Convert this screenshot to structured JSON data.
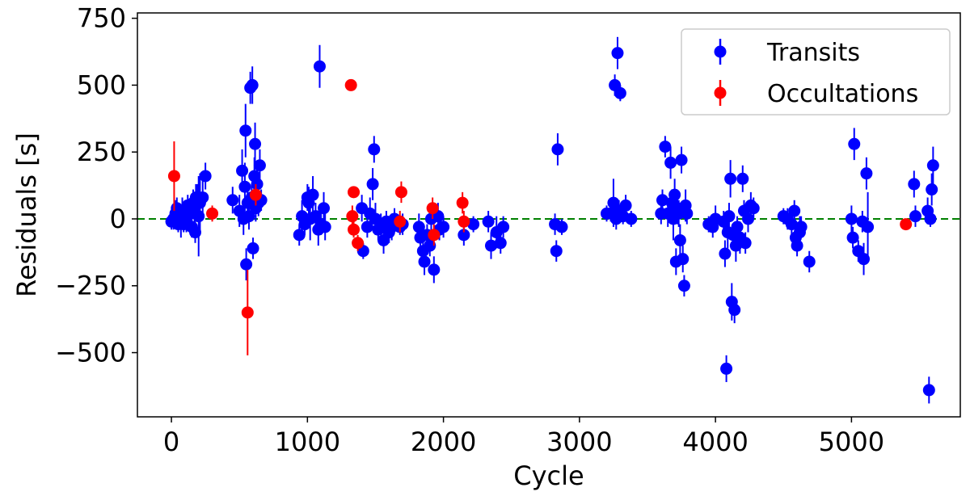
{
  "chart_data": {
    "type": "scatter",
    "xlabel": "Cycle",
    "ylabel": "Residuals [s]",
    "xlim": [
      -250,
      5800
    ],
    "ylim": [
      -740,
      770
    ],
    "xticks": [
      0,
      1000,
      2000,
      3000,
      4000,
      5000
    ],
    "yticks": [
      -500,
      -250,
      0,
      250,
      500,
      750
    ],
    "xtick_labels": [
      "0",
      "1000",
      "2000",
      "3000",
      "4000",
      "5000"
    ],
    "ytick_labels": [
      "−500",
      "−250",
      "0",
      "250",
      "500",
      "750"
    ],
    "reference_line": {
      "y": 0,
      "style": "dashed",
      "color": "#008000"
    },
    "legend": {
      "position": "top-right"
    },
    "series": [
      {
        "name": "Transits",
        "color": "#0000ff",
        "points": [
          {
            "x": 0,
            "y": -10,
            "err": 30
          },
          {
            "x": 15,
            "y": 0,
            "err": 40
          },
          {
            "x": 30,
            "y": 20,
            "err": 50
          },
          {
            "x": 40,
            "y": 40,
            "err": 40
          },
          {
            "x": 50,
            "y": -20,
            "err": 30
          },
          {
            "x": 60,
            "y": 10,
            "err": 40
          },
          {
            "x": 70,
            "y": -10,
            "err": 60
          },
          {
            "x": 80,
            "y": 30,
            "err": 50
          },
          {
            "x": 90,
            "y": -20,
            "err": 30
          },
          {
            "x": 100,
            "y": 30,
            "err": 40
          },
          {
            "x": 110,
            "y": 0,
            "err": 50
          },
          {
            "x": 120,
            "y": 50,
            "err": 40
          },
          {
            "x": 140,
            "y": 20,
            "err": 30
          },
          {
            "x": 150,
            "y": -30,
            "err": 40
          },
          {
            "x": 160,
            "y": 60,
            "err": 50
          },
          {
            "x": 170,
            "y": 40,
            "err": 60
          },
          {
            "x": 175,
            "y": -50,
            "err": 40
          },
          {
            "x": 180,
            "y": 80,
            "err": 50
          },
          {
            "x": 190,
            "y": 70,
            "err": 60
          },
          {
            "x": 200,
            "y": 10,
            "err": 150
          },
          {
            "x": 210,
            "y": 60,
            "err": 110
          },
          {
            "x": 230,
            "y": 80,
            "err": 80
          },
          {
            "x": 250,
            "y": 160,
            "err": 50
          },
          {
            "x": 450,
            "y": 70,
            "err": 50
          },
          {
            "x": 500,
            "y": 30,
            "err": 60
          },
          {
            "x": 520,
            "y": 180,
            "err": 80
          },
          {
            "x": 530,
            "y": 0,
            "err": 60
          },
          {
            "x": 540,
            "y": 120,
            "err": 90
          },
          {
            "x": 545,
            "y": 330,
            "err": 100
          },
          {
            "x": 550,
            "y": -170,
            "err": 60
          },
          {
            "x": 560,
            "y": 60,
            "err": 70
          },
          {
            "x": 570,
            "y": 10,
            "err": 50
          },
          {
            "x": 580,
            "y": 490,
            "err": 60
          },
          {
            "x": 590,
            "y": 80,
            "err": 50
          },
          {
            "x": 595,
            "y": 500,
            "err": 70
          },
          {
            "x": 600,
            "y": -110,
            "err": 40
          },
          {
            "x": 610,
            "y": 160,
            "err": 70
          },
          {
            "x": 615,
            "y": 280,
            "err": 80
          },
          {
            "x": 620,
            "y": 40,
            "err": 50
          },
          {
            "x": 630,
            "y": 130,
            "err": 60
          },
          {
            "x": 640,
            "y": 60,
            "err": 50
          },
          {
            "x": 650,
            "y": 200,
            "err": 60
          },
          {
            "x": 660,
            "y": 70,
            "err": 40
          },
          {
            "x": 940,
            "y": -60,
            "err": 40
          },
          {
            "x": 960,
            "y": 10,
            "err": 60
          },
          {
            "x": 980,
            "y": -20,
            "err": 40
          },
          {
            "x": 1000,
            "y": 80,
            "err": 50
          },
          {
            "x": 1010,
            "y": 60,
            "err": 60
          },
          {
            "x": 1020,
            "y": 0,
            "err": 80
          },
          {
            "x": 1040,
            "y": 90,
            "err": 70
          },
          {
            "x": 1060,
            "y": 10,
            "err": 50
          },
          {
            "x": 1080,
            "y": -40,
            "err": 60
          },
          {
            "x": 1090,
            "y": 570,
            "err": 80
          },
          {
            "x": 1100,
            "y": -20,
            "err": 40
          },
          {
            "x": 1120,
            "y": 40,
            "err": 60
          },
          {
            "x": 1130,
            "y": -30,
            "err": 50
          },
          {
            "x": 1400,
            "y": 40,
            "err": 50
          },
          {
            "x": 1410,
            "y": -120,
            "err": 30
          },
          {
            "x": 1440,
            "y": -30,
            "err": 40
          },
          {
            "x": 1460,
            "y": 20,
            "err": 60
          },
          {
            "x": 1480,
            "y": 130,
            "err": 60
          },
          {
            "x": 1490,
            "y": 260,
            "err": 50
          },
          {
            "x": 1500,
            "y": 0,
            "err": 60
          },
          {
            "x": 1520,
            "y": -40,
            "err": 40
          },
          {
            "x": 1540,
            "y": -20,
            "err": 40
          },
          {
            "x": 1560,
            "y": -80,
            "err": 50
          },
          {
            "x": 1580,
            "y": -10,
            "err": 40
          },
          {
            "x": 1600,
            "y": -50,
            "err": 40
          },
          {
            "x": 1620,
            "y": -30,
            "err": 50
          },
          {
            "x": 1640,
            "y": 0,
            "err": 40
          },
          {
            "x": 1680,
            "y": -30,
            "err": 30
          },
          {
            "x": 1700,
            "y": -20,
            "err": 40
          },
          {
            "x": 1820,
            "y": -30,
            "err": 50
          },
          {
            "x": 1830,
            "y": -70,
            "err": 40
          },
          {
            "x": 1850,
            "y": -120,
            "err": 50
          },
          {
            "x": 1860,
            "y": -160,
            "err": 50
          },
          {
            "x": 1880,
            "y": -60,
            "err": 40
          },
          {
            "x": 1900,
            "y": -100,
            "err": 40
          },
          {
            "x": 1910,
            "y": 0,
            "err": 50
          },
          {
            "x": 1930,
            "y": -190,
            "err": 50
          },
          {
            "x": 1960,
            "y": 10,
            "err": 50
          },
          {
            "x": 1970,
            "y": -40,
            "err": 40
          },
          {
            "x": 2000,
            "y": -30,
            "err": 40
          },
          {
            "x": 2150,
            "y": -60,
            "err": 40
          },
          {
            "x": 2220,
            "y": -20,
            "err": 30
          },
          {
            "x": 2330,
            "y": -10,
            "err": 40
          },
          {
            "x": 2350,
            "y": -100,
            "err": 50
          },
          {
            "x": 2390,
            "y": -50,
            "err": 60
          },
          {
            "x": 2420,
            "y": -90,
            "err": 40
          },
          {
            "x": 2440,
            "y": -30,
            "err": 40
          },
          {
            "x": 2820,
            "y": -20,
            "err": 40
          },
          {
            "x": 2830,
            "y": -120,
            "err": 40
          },
          {
            "x": 2840,
            "y": 260,
            "err": 60
          },
          {
            "x": 2870,
            "y": -30,
            "err": 30
          },
          {
            "x": 3200,
            "y": 20,
            "err": 30
          },
          {
            "x": 3230,
            "y": 20,
            "err": 30
          },
          {
            "x": 3250,
            "y": 60,
            "err": 90
          },
          {
            "x": 3260,
            "y": 500,
            "err": 40
          },
          {
            "x": 3270,
            "y": 0,
            "err": 40
          },
          {
            "x": 3280,
            "y": 620,
            "err": 60
          },
          {
            "x": 3290,
            "y": 30,
            "err": 40
          },
          {
            "x": 3300,
            "y": 470,
            "err": 30
          },
          {
            "x": 3320,
            "y": 10,
            "err": 30
          },
          {
            "x": 3340,
            "y": 50,
            "err": 40
          },
          {
            "x": 3380,
            "y": 0,
            "err": 30
          },
          {
            "x": 3600,
            "y": 20,
            "err": 40
          },
          {
            "x": 3610,
            "y": 70,
            "err": 40
          },
          {
            "x": 3630,
            "y": 270,
            "err": 40
          },
          {
            "x": 3650,
            "y": 20,
            "err": 50
          },
          {
            "x": 3670,
            "y": 210,
            "err": 60
          },
          {
            "x": 3680,
            "y": 60,
            "err": 50
          },
          {
            "x": 3690,
            "y": 0,
            "err": 80
          },
          {
            "x": 3700,
            "y": 90,
            "err": 60
          },
          {
            "x": 3710,
            "y": -160,
            "err": 50
          },
          {
            "x": 3720,
            "y": 40,
            "err": 60
          },
          {
            "x": 3730,
            "y": 20,
            "err": 50
          },
          {
            "x": 3740,
            "y": -80,
            "err": 60
          },
          {
            "x": 3750,
            "y": 220,
            "err": 50
          },
          {
            "x": 3760,
            "y": -150,
            "err": 50
          },
          {
            "x": 3770,
            "y": -250,
            "err": 40
          },
          {
            "x": 3780,
            "y": 50,
            "err": 60
          },
          {
            "x": 3790,
            "y": 20,
            "err": 40
          },
          {
            "x": 3950,
            "y": -20,
            "err": 30
          },
          {
            "x": 3980,
            "y": -30,
            "err": 40
          },
          {
            "x": 4000,
            "y": 0,
            "err": 50
          },
          {
            "x": 4060,
            "y": -10,
            "err": 40
          },
          {
            "x": 4070,
            "y": -130,
            "err": 50
          },
          {
            "x": 4080,
            "y": -560,
            "err": 50
          },
          {
            "x": 4090,
            "y": -50,
            "err": 60
          },
          {
            "x": 4100,
            "y": 10,
            "err": 50
          },
          {
            "x": 4110,
            "y": 150,
            "err": 70
          },
          {
            "x": 4120,
            "y": -310,
            "err": 70
          },
          {
            "x": 4130,
            "y": -60,
            "err": 40
          },
          {
            "x": 4140,
            "y": -340,
            "err": 50
          },
          {
            "x": 4150,
            "y": -100,
            "err": 60
          },
          {
            "x": 4160,
            "y": -30,
            "err": 40
          },
          {
            "x": 4180,
            "y": -70,
            "err": 60
          },
          {
            "x": 4200,
            "y": 150,
            "err": 50
          },
          {
            "x": 4210,
            "y": 30,
            "err": 40
          },
          {
            "x": 4220,
            "y": -90,
            "err": 40
          },
          {
            "x": 4240,
            "y": 0,
            "err": 50
          },
          {
            "x": 4260,
            "y": 50,
            "err": 50
          },
          {
            "x": 4280,
            "y": 40,
            "err": 40
          },
          {
            "x": 4500,
            "y": 10,
            "err": 30
          },
          {
            "x": 4530,
            "y": 0,
            "err": 40
          },
          {
            "x": 4560,
            "y": -20,
            "err": 50
          },
          {
            "x": 4580,
            "y": 30,
            "err": 40
          },
          {
            "x": 4590,
            "y": -70,
            "err": 50
          },
          {
            "x": 4600,
            "y": -100,
            "err": 40
          },
          {
            "x": 4620,
            "y": -50,
            "err": 60
          },
          {
            "x": 4630,
            "y": -30,
            "err": 40
          },
          {
            "x": 4690,
            "y": -160,
            "err": 40
          },
          {
            "x": 5000,
            "y": 0,
            "err": 50
          },
          {
            "x": 5010,
            "y": -70,
            "err": 40
          },
          {
            "x": 5020,
            "y": 280,
            "err": 60
          },
          {
            "x": 5050,
            "y": -120,
            "err": 40
          },
          {
            "x": 5080,
            "y": -10,
            "err": 40
          },
          {
            "x": 5090,
            "y": -150,
            "err": 60
          },
          {
            "x": 5110,
            "y": 170,
            "err": 60
          },
          {
            "x": 5120,
            "y": -30,
            "err": 130
          },
          {
            "x": 5460,
            "y": 130,
            "err": 50
          },
          {
            "x": 5470,
            "y": 10,
            "err": 40
          },
          {
            "x": 5560,
            "y": 30,
            "err": 50
          },
          {
            "x": 5570,
            "y": -640,
            "err": 50
          },
          {
            "x": 5580,
            "y": 0,
            "err": 30
          },
          {
            "x": 5590,
            "y": 110,
            "err": 60
          },
          {
            "x": 5600,
            "y": 200,
            "err": 70
          }
        ]
      },
      {
        "name": "Occultations",
        "color": "#ff0000",
        "points": [
          {
            "x": 20,
            "y": 160,
            "err": 130
          },
          {
            "x": 300,
            "y": 20,
            "err": 30
          },
          {
            "x": 560,
            "y": -350,
            "err": 160
          },
          {
            "x": 620,
            "y": 90,
            "err": 40
          },
          {
            "x": 1320,
            "y": 500,
            "err": 20
          },
          {
            "x": 1330,
            "y": 10,
            "err": 40
          },
          {
            "x": 1340,
            "y": 100,
            "err": 20
          },
          {
            "x": 1340,
            "y": -40,
            "err": 30
          },
          {
            "x": 1370,
            "y": -90,
            "err": 30
          },
          {
            "x": 1680,
            "y": -10,
            "err": 40
          },
          {
            "x": 1690,
            "y": 100,
            "err": 40
          },
          {
            "x": 1920,
            "y": 40,
            "err": 40
          },
          {
            "x": 1930,
            "y": -60,
            "err": 40
          },
          {
            "x": 2140,
            "y": 60,
            "err": 40
          },
          {
            "x": 2150,
            "y": -10,
            "err": 40
          },
          {
            "x": 5400,
            "y": -20,
            "err": 20
          }
        ]
      }
    ]
  }
}
